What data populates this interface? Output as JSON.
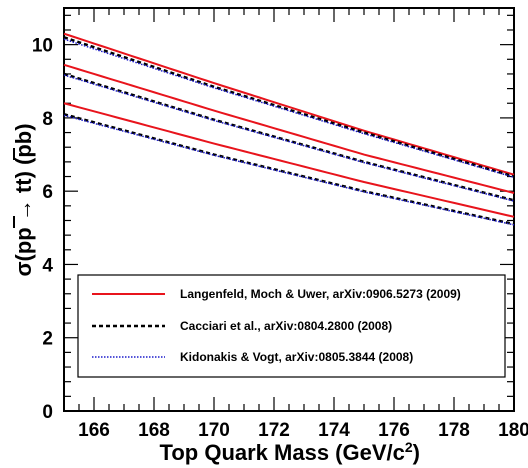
{
  "chart_data": {
    "type": "line",
    "xlabel": "Top Quark Mass (GeV/c",
    "xlabel_sup": "2",
    "xlabel_end": ")",
    "ylabel": "σ(pp → tt) (pb)",
    "xlim": [
      165,
      180
    ],
    "ylim": [
      0,
      11
    ],
    "xticks": [
      "166",
      "168",
      "170",
      "172",
      "174",
      "176",
      "178",
      "180"
    ],
    "yticks": [
      "0",
      "2",
      "4",
      "6",
      "8",
      "10"
    ],
    "grid": false,
    "legend_placement": "bottom-center",
    "series": [
      {
        "name": "Langenfeld, Moch & Uwer, arXiv:0906.5273 (2009)",
        "color": "#e8141c",
        "style": "solid",
        "bands": [
          {
            "x": [
              165,
              170,
              175,
              180
            ],
            "y": [
              10.3,
              8.95,
              7.65,
              6.45
            ]
          },
          {
            "x": [
              165,
              170,
              175,
              180
            ],
            "y": [
              9.45,
              8.2,
              7.0,
              5.95
            ]
          },
          {
            "x": [
              165,
              170,
              175,
              180
            ],
            "y": [
              8.4,
              7.3,
              6.25,
              5.3
            ]
          }
        ]
      },
      {
        "name": "Cacciari et al., arXiv:0804.2800 (2008)",
        "color": "#000000",
        "style": "dashed",
        "bands": [
          {
            "x": [
              165,
              170,
              175,
              180
            ],
            "y": [
              10.2,
              8.85,
              7.6,
              6.4
            ]
          },
          {
            "x": [
              165,
              170,
              175,
              180
            ],
            "y": [
              9.2,
              7.95,
              6.8,
              5.75
            ]
          },
          {
            "x": [
              165,
              170,
              175,
              180
            ],
            "y": [
              8.1,
              7.0,
              6.0,
              5.1
            ]
          }
        ]
      },
      {
        "name": "Kidonakis & Vogt, arXiv:0805.3844 (2008)",
        "color": "#1c1ccc",
        "style": "dotted",
        "bands": [
          {
            "x": [
              165,
              170,
              175,
              180
            ],
            "y": [
              10.15,
              8.82,
              7.57,
              6.38
            ]
          },
          {
            "x": [
              165,
              170,
              175,
              180
            ],
            "y": [
              9.17,
              7.93,
              6.78,
              5.73
            ]
          },
          {
            "x": [
              165,
              170,
              175,
              180
            ],
            "y": [
              8.07,
              6.98,
              5.98,
              5.08
            ]
          }
        ]
      }
    ]
  }
}
